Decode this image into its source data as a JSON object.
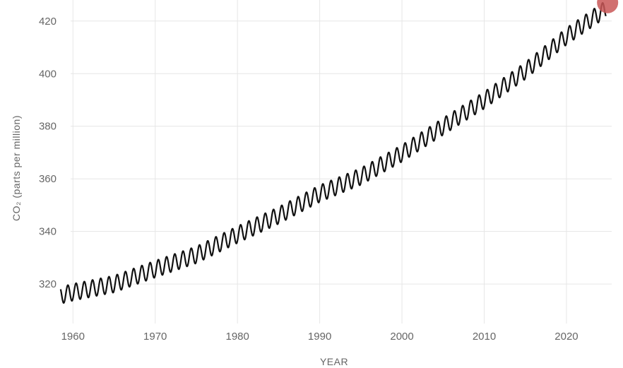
{
  "chart_data": {
    "type": "line",
    "title": "",
    "xlabel": "YEAR",
    "ylabel": "CO₂ (parts per million)",
    "xlim": [
      1958,
      2025.5
    ],
    "ylim": [
      305,
      428
    ],
    "x_ticks": [
      "1960",
      "1970",
      "1980",
      "1990",
      "2000",
      "2010",
      "2020"
    ],
    "y_ticks": [
      "320",
      "340",
      "360",
      "380",
      "400",
      "420"
    ],
    "grid": true,
    "legend": "none",
    "line_color": "#111111",
    "marker_color": "#c95757",
    "seasonal_amplitude_ppm": 3.2,
    "series": [
      {
        "x": [
          1958.5,
          1960,
          1965,
          1970,
          1975,
          1980,
          1985,
          1990,
          1995,
          2000,
          2005,
          2010,
          2015,
          2020,
          2024.8
        ],
        "values": [
          315.7,
          316.9,
          320.0,
          325.7,
          331.1,
          338.8,
          346.1,
          354.4,
          360.9,
          369.7,
          379.9,
          389.9,
          401.1,
          414.2,
          424.6
        ]
      }
    ],
    "latest_point": {
      "x": 2025,
      "value": 427
    }
  }
}
